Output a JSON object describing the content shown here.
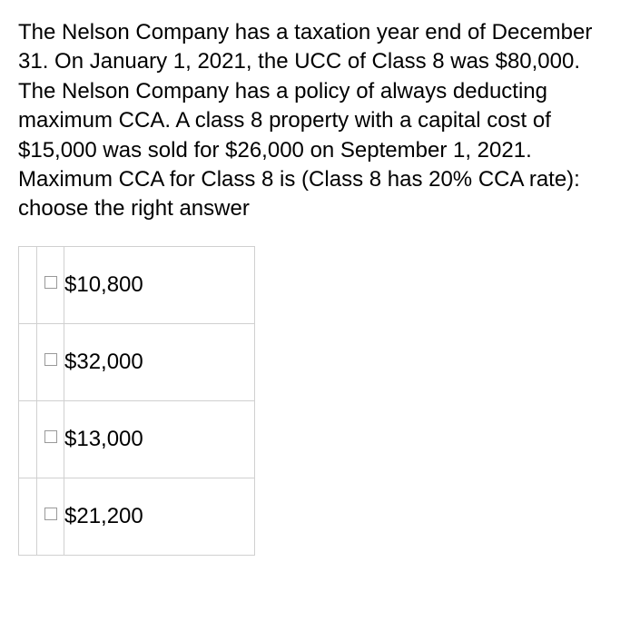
{
  "question": {
    "text": "The Nelson Company has a taxation year end of December 31. On January 1, 2021, the UCC of Class 8 was $80,000. The Nelson Company has a policy of always deducting maximum CCA. A class 8 property with a capital cost of $15,000 was sold for $26,000 on September 1, 2021. Maximum CCA for Class 8 is (Class 8 has 20% CCA rate): choose the right answer"
  },
  "options": [
    {
      "label": "$10,800"
    },
    {
      "label": "$32,000"
    },
    {
      "label": "$13,000"
    },
    {
      "label": "$21,200"
    }
  ],
  "style": {
    "font_size_body": 24,
    "text_color": "#000000",
    "border_color": "#d0d0d0",
    "background_color": "#ffffff"
  }
}
